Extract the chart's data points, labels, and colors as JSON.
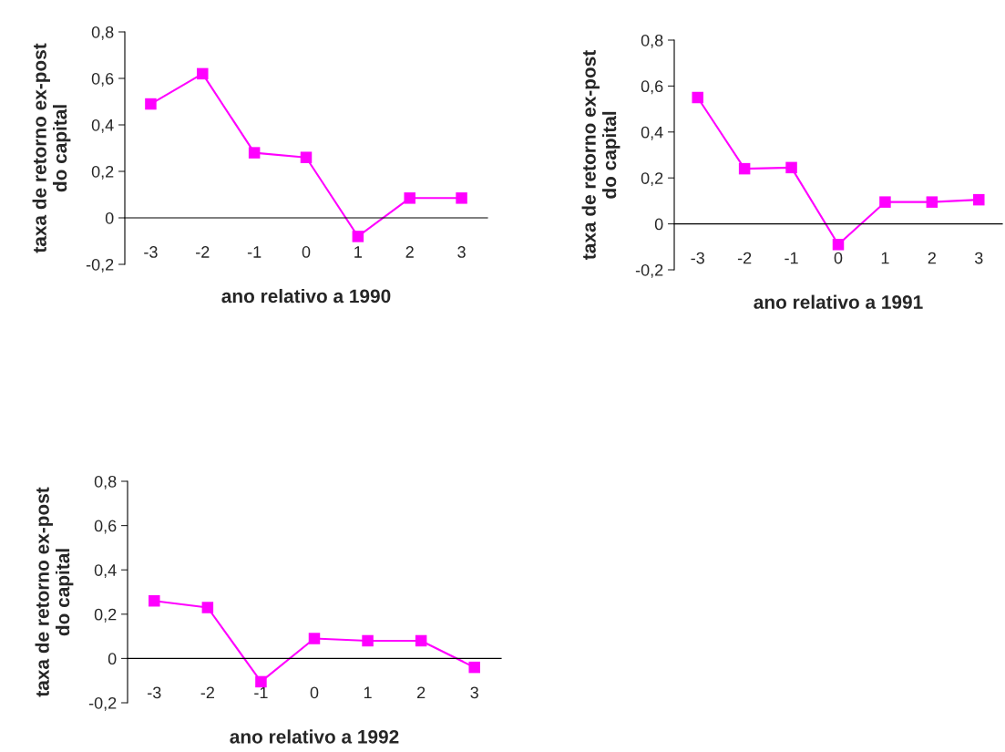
{
  "chart_data": [
    {
      "type": "line",
      "categories": [
        "-3",
        "-2",
        "-1",
        "0",
        "1",
        "2",
        "3"
      ],
      "values": [
        0.49,
        0.62,
        0.28,
        0.26,
        -0.08,
        0.085,
        0.085
      ],
      "color": "#ff00ff",
      "marker": "square",
      "xlabel": "ano relativo a 1990",
      "ylabel": "taxa de retorno ex-post\ndo capital",
      "ylim": [
        -0.2,
        0.8
      ],
      "yticks": [
        {
          "value": -0.2,
          "label": "-0,2"
        },
        0,
        {
          "value": 0.2,
          "label": "0,2"
        },
        {
          "value": 0.4,
          "label": "0,4"
        },
        {
          "value": 0.6,
          "label": "0,6"
        },
        {
          "value": 0.8,
          "label": "0,8"
        }
      ]
    },
    {
      "type": "line",
      "categories": [
        "-3",
        "-2",
        "-1",
        "0",
        "1",
        "2",
        "3"
      ],
      "values": [
        0.55,
        0.24,
        0.245,
        -0.09,
        0.095,
        0.095,
        0.105
      ],
      "color": "#ff00ff",
      "marker": "square",
      "xlabel": "ano relativo a 1991",
      "ylabel": "taxa de retorno ex-post\ndo capital",
      "ylim": [
        -0.2,
        0.8
      ],
      "yticks": [
        {
          "value": -0.2,
          "label": "-0,2"
        },
        0,
        {
          "value": 0.2,
          "label": "0,2"
        },
        {
          "value": 0.4,
          "label": "0,4"
        },
        {
          "value": 0.6,
          "label": "0,6"
        },
        {
          "value": 0.8,
          "label": "0,8"
        }
      ]
    },
    {
      "type": "line",
      "categories": [
        "-3",
        "-2",
        "-1",
        "0",
        "1",
        "2",
        "3"
      ],
      "values": [
        0.26,
        0.23,
        -0.105,
        0.09,
        0.08,
        0.08,
        -0.04
      ],
      "color": "#ff00ff",
      "marker": "square",
      "xlabel": "ano relativo a 1992",
      "ylabel": "taxa de retorno ex-post\ndo capital",
      "ylim": [
        -0.2,
        0.8
      ],
      "yticks": [
        {
          "value": -0.2,
          "label": "-0,2"
        },
        0,
        {
          "value": 0.2,
          "label": "0,2"
        },
        {
          "value": 0.4,
          "label": "0,4"
        },
        {
          "value": 0.6,
          "label": "0,6"
        },
        {
          "value": 0.8,
          "label": "0,8"
        }
      ]
    }
  ]
}
